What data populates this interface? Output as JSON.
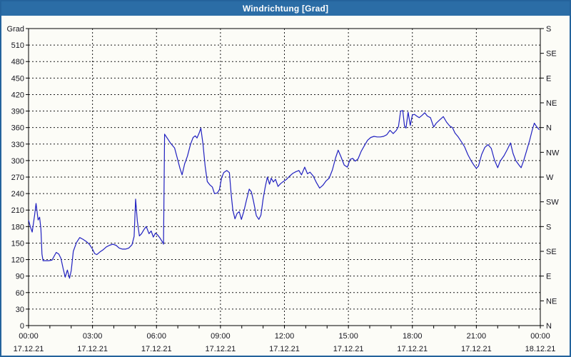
{
  "window": {
    "title": "Windrichtung [Grad]"
  },
  "colors": {
    "titlebar_bg": "#2b6da6",
    "window_border": "#24639c",
    "background": "#fcfcf7",
    "axis_text": "#16161e",
    "plot_border": "#000000",
    "grid": "#1a1a1a",
    "series_line": "#2020c0"
  },
  "chart_data": {
    "type": "line",
    "title": "Windrichtung [Grad]",
    "ylabel": "Grad",
    "xlabel": "",
    "grid": "dashed, every 30 deg horizontal, every 3 h vertical",
    "legend_position": "none",
    "y_axis_left": {
      "label": "Grad",
      "min": 0,
      "max": 540,
      "tick_step": 30
    },
    "y_axis_right": {
      "tick_step": 45,
      "labels_bottom_to_top": [
        "N",
        "NE",
        "E",
        "SE",
        "S",
        "SW",
        "W",
        "NW",
        "N",
        "NE",
        "E",
        "SE",
        "S"
      ]
    },
    "x_axis": {
      "start_hour": 0,
      "end_hour": 24,
      "label_step_hours": 3,
      "minor_tick_hours": 1,
      "labels": [
        {
          "time": "00:00",
          "date": "17.12.21"
        },
        {
          "time": "03:00",
          "date": "17.12.21"
        },
        {
          "time": "06:00",
          "date": "17.12.21"
        },
        {
          "time": "09:00",
          "date": "17.12.21"
        },
        {
          "time": "12:00",
          "date": "17.12.21"
        },
        {
          "time": "15:00",
          "date": "17.12.21"
        },
        {
          "time": "18:00",
          "date": "17.12.21"
        },
        {
          "time": "21:00",
          "date": "17.12.21"
        },
        {
          "time": "00:00",
          "date": "18.12.21"
        }
      ]
    },
    "series": [
      {
        "name": "Windrichtung",
        "unit": "Grad",
        "points_hour_deg": [
          [
            0.0,
            192
          ],
          [
            0.08,
            180
          ],
          [
            0.17,
            170
          ],
          [
            0.28,
            200
          ],
          [
            0.35,
            222
          ],
          [
            0.45,
            192
          ],
          [
            0.52,
            197
          ],
          [
            0.58,
            176
          ],
          [
            0.63,
            130
          ],
          [
            0.68,
            118
          ],
          [
            0.8,
            118
          ],
          [
            0.95,
            118
          ],
          [
            1.1,
            119
          ],
          [
            1.2,
            126
          ],
          [
            1.3,
            133
          ],
          [
            1.42,
            130
          ],
          [
            1.52,
            122
          ],
          [
            1.62,
            104
          ],
          [
            1.72,
            88
          ],
          [
            1.82,
            101
          ],
          [
            1.92,
            86
          ],
          [
            2.0,
            100
          ],
          [
            2.1,
            135
          ],
          [
            2.25,
            151
          ],
          [
            2.4,
            160
          ],
          [
            2.55,
            157
          ],
          [
            2.7,
            153
          ],
          [
            2.85,
            148
          ],
          [
            3.0,
            139
          ],
          [
            3.1,
            131
          ],
          [
            3.2,
            129
          ],
          [
            3.35,
            134
          ],
          [
            3.5,
            138
          ],
          [
            3.65,
            143
          ],
          [
            3.8,
            146
          ],
          [
            3.95,
            148
          ],
          [
            4.1,
            146
          ],
          [
            4.25,
            141
          ],
          [
            4.4,
            139
          ],
          [
            4.55,
            139
          ],
          [
            4.7,
            141
          ],
          [
            4.85,
            147
          ],
          [
            4.95,
            162
          ],
          [
            5.02,
            230
          ],
          [
            5.1,
            190
          ],
          [
            5.2,
            163
          ],
          [
            5.3,
            167
          ],
          [
            5.42,
            175
          ],
          [
            5.52,
            180
          ],
          [
            5.65,
            167
          ],
          [
            5.75,
            172
          ],
          [
            5.85,
            161
          ],
          [
            5.95,
            168
          ],
          [
            6.05,
            165
          ],
          [
            6.15,
            160
          ],
          [
            6.28,
            152
          ],
          [
            6.33,
            148
          ],
          [
            6.38,
            348
          ],
          [
            6.5,
            341
          ],
          [
            6.65,
            332
          ],
          [
            6.85,
            323
          ],
          [
            7.0,
            301
          ],
          [
            7.1,
            286
          ],
          [
            7.2,
            274
          ],
          [
            7.32,
            294
          ],
          [
            7.45,
            308
          ],
          [
            7.6,
            330
          ],
          [
            7.72,
            342
          ],
          [
            7.82,
            345
          ],
          [
            7.9,
            341
          ],
          [
            8.0,
            350
          ],
          [
            8.08,
            359
          ],
          [
            8.18,
            330
          ],
          [
            8.28,
            290
          ],
          [
            8.38,
            262
          ],
          [
            8.5,
            256
          ],
          [
            8.62,
            252
          ],
          [
            8.72,
            240
          ],
          [
            8.85,
            241
          ],
          [
            8.95,
            247
          ],
          [
            9.05,
            268
          ],
          [
            9.15,
            278
          ],
          [
            9.3,
            282
          ],
          [
            9.42,
            278
          ],
          [
            9.5,
            240
          ],
          [
            9.58,
            210
          ],
          [
            9.68,
            194
          ],
          [
            9.78,
            204
          ],
          [
            9.88,
            207
          ],
          [
            9.98,
            193
          ],
          [
            10.1,
            208
          ],
          [
            10.22,
            228
          ],
          [
            10.35,
            248
          ],
          [
            10.45,
            243
          ],
          [
            10.55,
            226
          ],
          [
            10.68,
            200
          ],
          [
            10.8,
            193
          ],
          [
            10.9,
            201
          ],
          [
            11.0,
            230
          ],
          [
            11.1,
            252
          ],
          [
            11.2,
            270
          ],
          [
            11.3,
            257
          ],
          [
            11.38,
            268
          ],
          [
            11.48,
            261
          ],
          [
            11.58,
            266
          ],
          [
            11.7,
            253
          ],
          [
            11.82,
            258
          ],
          [
            11.95,
            262
          ],
          [
            12.1,
            266
          ],
          [
            12.25,
            272
          ],
          [
            12.4,
            277
          ],
          [
            12.55,
            280
          ],
          [
            12.68,
            282
          ],
          [
            12.8,
            274
          ],
          [
            12.95,
            288
          ],
          [
            13.08,
            276
          ],
          [
            13.2,
            279
          ],
          [
            13.35,
            272
          ],
          [
            13.5,
            260
          ],
          [
            13.65,
            250
          ],
          [
            13.8,
            255
          ],
          [
            13.95,
            263
          ],
          [
            14.1,
            268
          ],
          [
            14.25,
            283
          ],
          [
            14.4,
            305
          ],
          [
            14.52,
            319
          ],
          [
            14.65,
            307
          ],
          [
            14.8,
            292
          ],
          [
            14.95,
            288
          ],
          [
            15.08,
            302
          ],
          [
            15.2,
            304
          ],
          [
            15.32,
            299
          ],
          [
            15.45,
            303
          ],
          [
            15.6,
            317
          ],
          [
            15.75,
            327
          ],
          [
            15.9,
            337
          ],
          [
            16.05,
            342
          ],
          [
            16.2,
            344
          ],
          [
            16.35,
            343
          ],
          [
            16.5,
            343
          ],
          [
            16.65,
            344
          ],
          [
            16.8,
            347
          ],
          [
            16.95,
            355
          ],
          [
            17.1,
            349
          ],
          [
            17.25,
            355
          ],
          [
            17.35,
            362
          ],
          [
            17.45,
            390
          ],
          [
            17.55,
            391
          ],
          [
            17.63,
            363
          ],
          [
            17.7,
            359
          ],
          [
            17.8,
            388
          ],
          [
            17.9,
            364
          ],
          [
            18.0,
            383
          ],
          [
            18.1,
            384
          ],
          [
            18.2,
            381
          ],
          [
            18.32,
            378
          ],
          [
            18.45,
            382
          ],
          [
            18.58,
            387
          ],
          [
            18.7,
            381
          ],
          [
            18.85,
            378
          ],
          [
            19.0,
            361
          ],
          [
            19.12,
            368
          ],
          [
            19.28,
            374
          ],
          [
            19.45,
            380
          ],
          [
            19.6,
            370
          ],
          [
            19.75,
            363
          ],
          [
            19.88,
            360
          ],
          [
            20.0,
            350
          ],
          [
            20.15,
            343
          ],
          [
            20.3,
            334
          ],
          [
            20.45,
            325
          ],
          [
            20.6,
            311
          ],
          [
            20.75,
            300
          ],
          [
            20.88,
            292
          ],
          [
            21.0,
            286
          ],
          [
            21.1,
            290
          ],
          [
            21.25,
            311
          ],
          [
            21.4,
            324
          ],
          [
            21.55,
            329
          ],
          [
            21.7,
            322
          ],
          [
            21.85,
            301
          ],
          [
            22.0,
            287
          ],
          [
            22.12,
            299
          ],
          [
            22.3,
            309
          ],
          [
            22.45,
            320
          ],
          [
            22.6,
            332
          ],
          [
            22.72,
            313
          ],
          [
            22.85,
            300
          ],
          [
            23.0,
            292
          ],
          [
            23.1,
            287
          ],
          [
            23.22,
            300
          ],
          [
            23.35,
            317
          ],
          [
            23.5,
            337
          ],
          [
            23.62,
            355
          ],
          [
            23.72,
            368
          ],
          [
            23.82,
            362
          ],
          [
            23.95,
            356
          ]
        ]
      }
    ]
  }
}
